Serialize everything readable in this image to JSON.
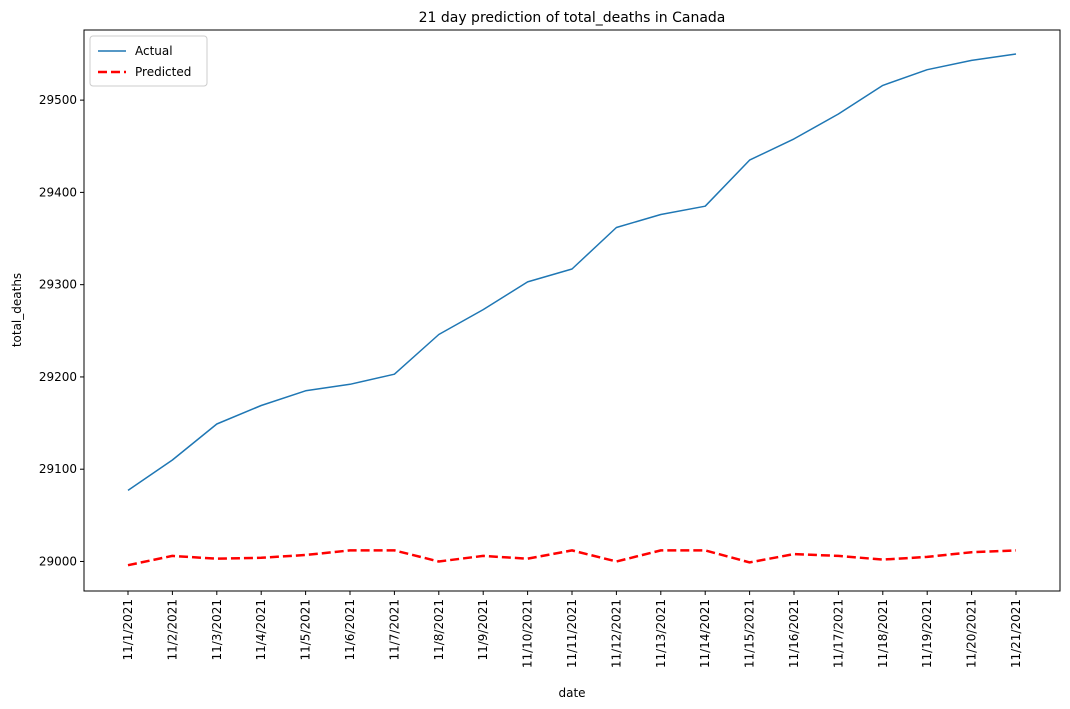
{
  "chart_data": {
    "type": "line",
    "title": "21 day prediction of total_deaths in Canada",
    "xlabel": "date",
    "ylabel": "total_deaths",
    "categories": [
      "11/1/2021",
      "11/2/2021",
      "11/3/2021",
      "11/4/2021",
      "11/5/2021",
      "11/6/2021",
      "11/7/2021",
      "11/8/2021",
      "11/9/2021",
      "11/10/2021",
      "11/11/2021",
      "11/12/2021",
      "11/13/2021",
      "11/14/2021",
      "11/15/2021",
      "11/16/2021",
      "11/17/2021",
      "11/18/2021",
      "11/19/2021",
      "11/20/2021",
      "11/21/2021"
    ],
    "yticks": [
      29000,
      29100,
      29200,
      29300,
      29400,
      29500
    ],
    "ylim": [
      28968,
      29576
    ],
    "grid": false,
    "legend_position": "top-left",
    "series": [
      {
        "name": "Actual",
        "color": "#1f77b4",
        "style": "solid",
        "values": [
          29077,
          29110,
          29149,
          29169,
          29185,
          29192,
          29203,
          29246,
          29273,
          29303,
          29317,
          29362,
          29376,
          29385,
          29435,
          29458,
          29485,
          29516,
          29533,
          29543,
          29550
        ]
      },
      {
        "name": "Predicted",
        "color": "#ff0000",
        "style": "dashed",
        "values": [
          28996,
          29006,
          29003,
          29004,
          29007,
          29012,
          29012,
          29000,
          29006,
          29003,
          29012,
          29000,
          29012,
          29012,
          28999,
          29008,
          29006,
          29002,
          29005,
          29010,
          29012
        ]
      }
    ]
  }
}
